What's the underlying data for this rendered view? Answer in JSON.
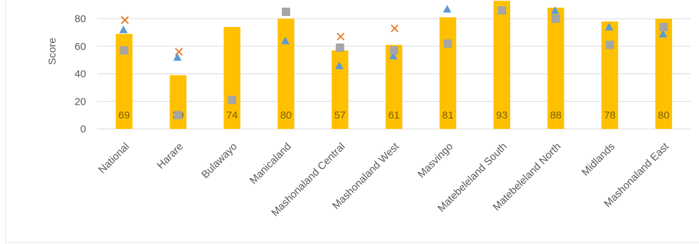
{
  "chart_data": {
    "type": "bar",
    "ylabel": "Score",
    "ylim": [
      0,
      90
    ],
    "yticks": [
      0,
      20,
      40,
      60,
      80
    ],
    "grid": true,
    "categories": [
      "National",
      "Harare",
      "Bulawayo",
      "Manicaland",
      "Mashonaland Central",
      "Mashonaland West",
      "Masvingo",
      "Matebeleland South",
      "Matebeleland North",
      "Midlands",
      "Mashonaland East"
    ],
    "series": [
      {
        "marker": "bar",
        "color": "#ffc000",
        "values": [
          69,
          39,
          74,
          80,
          57,
          61,
          81,
          93,
          88,
          78,
          80
        ],
        "data_labels": [
          "69",
          "39",
          "74",
          "80",
          "57",
          "61",
          "81",
          "93",
          "88",
          "78",
          "80"
        ]
      },
      {
        "marker": "x",
        "color": "#ed7d31",
        "values": [
          79,
          56,
          null,
          null,
          67,
          73,
          null,
          null,
          null,
          null,
          null
        ]
      },
      {
        "marker": "triangle",
        "color": "#5b9bd5",
        "values": [
          72,
          52,
          null,
          64,
          46,
          53,
          87,
          null,
          86,
          74,
          69
        ]
      },
      {
        "marker": "square",
        "color": "#a5a5a5",
        "values": [
          57,
          10,
          21,
          85,
          59,
          57,
          62,
          86,
          80,
          61,
          74
        ]
      }
    ]
  }
}
